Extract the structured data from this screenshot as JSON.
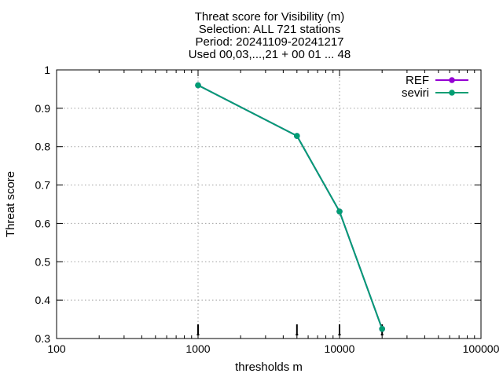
{
  "chart_data": {
    "type": "line",
    "title_lines": [
      "Threat score  for Visibility (m)",
      "Selection: ALL    721 stations",
      "Period: 20241109-20241217",
      "Used 00,03,...,21 + 00 01 ... 48"
    ],
    "xlabel": "thresholds m",
    "ylabel": "Threat score",
    "x_scale": "log",
    "xlim": [
      100,
      100000
    ],
    "ylim": [
      0.3,
      1
    ],
    "x_ticks": [
      100,
      1000,
      10000,
      100000
    ],
    "x_tick_labels": [
      "100",
      "1000",
      "10000",
      "100000"
    ],
    "y_ticks": [
      0.3,
      0.4,
      0.5,
      0.6,
      0.7,
      0.8,
      0.9,
      1
    ],
    "y_tick_labels": [
      "0.3",
      "0.4",
      "0.5",
      "0.6",
      "0.7",
      "0.8",
      "0.9",
      "1"
    ],
    "grid": true,
    "legend_position": "top-right",
    "series": [
      {
        "name": "REF",
        "color": "#9400d3",
        "x": [
          1000,
          5000,
          10000,
          20000
        ],
        "y": [
          0.96,
          0.828,
          0.631,
          0.325
        ]
      },
      {
        "name": "seviri",
        "color": "#009e73",
        "x": [
          1000,
          5000,
          10000,
          20000
        ],
        "y": [
          0.96,
          0.828,
          0.631,
          0.325
        ]
      }
    ],
    "error_bars": [
      {
        "x": 1000,
        "low": 0.31,
        "high": 0.337
      },
      {
        "x": 5000,
        "low": 0.31,
        "high": 0.337
      },
      {
        "x": 10000,
        "low": 0.31,
        "high": 0.337
      },
      {
        "x": 20000,
        "low": 0.31,
        "high": 0.337
      }
    ]
  }
}
